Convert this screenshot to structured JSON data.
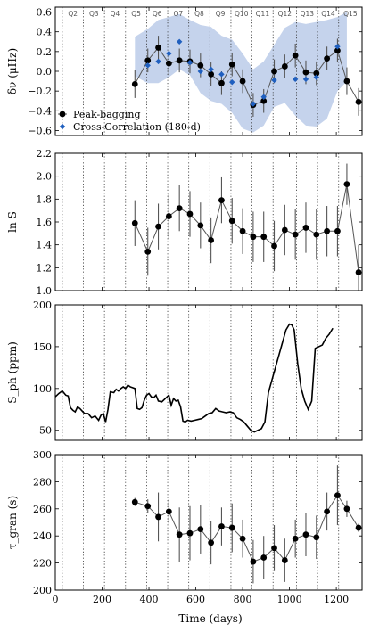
{
  "figure": {
    "xlabel": "Time (days)",
    "x_ticks": [
      0,
      200,
      400,
      600,
      800,
      1000,
      1200
    ],
    "xlim": [
      0,
      1310
    ],
    "quarter_boundaries": [
      30,
      120,
      210,
      300,
      390,
      480,
      570,
      660,
      750,
      840,
      930,
      1030,
      1120,
      1210
    ],
    "quarter_labels": [
      {
        "label": "Q2",
        "x": 75
      },
      {
        "label": "Q3",
        "x": 165
      },
      {
        "label": "Q4",
        "x": 255
      },
      {
        "label": "Q5",
        "x": 345
      },
      {
        "label": "Q6",
        "x": 435
      },
      {
        "label": "Q7",
        "x": 525
      },
      {
        "label": "Q8",
        "x": 615
      },
      {
        "label": "Q9",
        "x": 705
      },
      {
        "label": "Q10",
        "x": 795
      },
      {
        "label": "Q11",
        "x": 885
      },
      {
        "label": "Q12",
        "x": 980
      },
      {
        "label": "Q13",
        "x": 1075
      },
      {
        "label": "Q14",
        "x": 1165
      },
      {
        "label": "Q15",
        "x": 1260
      }
    ],
    "colors": {
      "markers": "#000000",
      "cross_correlation": "#1f5fbf",
      "band": "#c5d3ec",
      "quarter_lines": "#333333"
    }
  },
  "chart_data": [
    {
      "type": "scatter",
      "ylabel": "δν (μHz)",
      "ylim": [
        -0.65,
        0.65
      ],
      "y_ticks": [
        -0.6,
        -0.4,
        -0.2,
        0.0,
        0.2,
        0.4,
        0.6
      ],
      "y_tick_labels": [
        "−0.6",
        "−0.4",
        "−0.2",
        "0.0",
        "0.2",
        "0.4",
        "0.6"
      ],
      "legend": {
        "position": "bottom-left",
        "entries": [
          "Peak-bagging",
          "Cross-Correlation (180-d)"
        ]
      },
      "series": [
        {
          "name": "Peak-bagging",
          "x": [
            340,
            395,
            440,
            485,
            530,
            575,
            620,
            665,
            710,
            755,
            800,
            845,
            890,
            935,
            980,
            1025,
            1070,
            1115,
            1160,
            1205,
            1245,
            1295
          ],
          "y": [
            -0.13,
            0.11,
            0.24,
            0.08,
            0.11,
            0.1,
            0.06,
            -0.03,
            -0.12,
            0.07,
            -0.1,
            -0.34,
            -0.3,
            0.0,
            0.05,
            0.16,
            -0.01,
            -0.02,
            0.13,
            0.21,
            -0.1,
            -0.31
          ],
          "err": [
            0.14,
            0.12,
            0.12,
            0.12,
            0.12,
            0.12,
            0.12,
            0.12,
            0.12,
            0.12,
            0.12,
            0.12,
            0.12,
            0.12,
            0.12,
            0.12,
            0.12,
            0.12,
            0.12,
            0.12,
            0.14,
            0.14
          ]
        },
        {
          "name": "Cross-Correlation (180-d)",
          "x": [
            395,
            440,
            485,
            530,
            575,
            620,
            665,
            710,
            755,
            845,
            890,
            935,
            1025,
            1070,
            1115,
            1205
          ],
          "y": [
            0.06,
            0.1,
            0.18,
            0.3,
            0.09,
            0.0,
            0.02,
            -0.03,
            -0.11,
            -0.33,
            -0.26,
            -0.09,
            -0.08,
            -0.08,
            -0.06,
            0.25
          ]
        }
      ],
      "band": {
        "x": [
          340,
          395,
          440,
          485,
          530,
          575,
          620,
          665,
          710,
          755,
          800,
          845,
          890,
          935,
          980,
          1025,
          1070,
          1115,
          1160,
          1205,
          1245
        ],
        "upper": [
          0.35,
          0.43,
          0.52,
          0.55,
          0.58,
          0.52,
          0.47,
          0.45,
          0.36,
          0.32,
          0.18,
          0.02,
          0.1,
          0.27,
          0.44,
          0.5,
          0.48,
          0.5,
          0.52,
          0.55,
          0.6
        ],
        "lower": [
          -0.05,
          -0.12,
          -0.12,
          -0.06,
          0.02,
          -0.04,
          -0.22,
          -0.3,
          -0.33,
          -0.42,
          -0.58,
          -0.62,
          -0.55,
          -0.36,
          -0.32,
          -0.45,
          -0.55,
          -0.56,
          -0.48,
          -0.2,
          -0.1
        ]
      }
    },
    {
      "type": "line",
      "ylabel": "ln S",
      "ylim": [
        1.0,
        2.2
      ],
      "y_ticks": [
        1.0,
        1.2,
        1.4,
        1.6,
        1.8,
        2.0,
        2.2
      ],
      "y_tick_labels": [
        "1.0",
        "1.2",
        "1.4",
        "1.6",
        "1.8",
        "2.0",
        "2.2"
      ],
      "series": [
        {
          "x": [
            340,
            395,
            440,
            485,
            530,
            575,
            620,
            665,
            710,
            755,
            800,
            845,
            890,
            935,
            980,
            1025,
            1070,
            1115,
            1160,
            1205,
            1245,
            1295
          ],
          "y": [
            1.59,
            1.34,
            1.56,
            1.65,
            1.72,
            1.67,
            1.57,
            1.44,
            1.79,
            1.61,
            1.52,
            1.47,
            1.47,
            1.39,
            1.53,
            1.49,
            1.55,
            1.49,
            1.52,
            1.52,
            1.93,
            1.16
          ],
          "err": [
            0.2,
            0.21,
            0.2,
            0.2,
            0.2,
            0.2,
            0.2,
            0.2,
            0.2,
            0.2,
            0.2,
            0.22,
            0.22,
            0.22,
            0.22,
            0.22,
            0.22,
            0.22,
            0.22,
            0.22,
            0.18,
            0.24
          ]
        }
      ]
    },
    {
      "type": "line",
      "ylabel": "S_ph (ppm)",
      "ylim": [
        38,
        200
      ],
      "y_ticks": [
        50,
        100,
        150,
        200
      ],
      "y_tick_labels": [
        "50",
        "100",
        "150",
        "200"
      ],
      "series": [
        {
          "x": [
            0,
            15,
            30,
            45,
            55,
            65,
            75,
            85,
            95,
            105,
            115,
            125,
            140,
            155,
            170,
            185,
            195,
            205,
            215,
            225,
            235,
            250,
            260,
            270,
            280,
            290,
            300,
            310,
            320,
            330,
            340,
            350,
            360,
            370,
            380,
            390,
            400,
            410,
            420,
            430,
            440,
            455,
            470,
            485,
            495,
            505,
            515,
            525,
            535,
            545,
            555,
            565,
            580,
            595,
            610,
            625,
            640,
            655,
            670,
            685,
            700,
            715,
            730,
            745,
            760,
            775,
            790,
            805,
            820,
            835,
            850,
            865,
            880,
            895,
            910,
            925,
            940,
            955,
            970,
            985,
            1000,
            1010,
            1020,
            1035,
            1050,
            1065,
            1080,
            1095,
            1110,
            1125,
            1140,
            1155,
            1170,
            1185
          ],
          "y": [
            90,
            94,
            97,
            92,
            91,
            77,
            74,
            72,
            78,
            76,
            73,
            70,
            70,
            65,
            67,
            62,
            68,
            70,
            60,
            75,
            96,
            95,
            99,
            97,
            100,
            102,
            100,
            104,
            102,
            101,
            100,
            76,
            75,
            77,
            86,
            92,
            94,
            90,
            89,
            92,
            85,
            84,
            88,
            92,
            80,
            88,
            85,
            86,
            78,
            61,
            60,
            62,
            61,
            62,
            63,
            64,
            67,
            70,
            71,
            76,
            73,
            72,
            71,
            72,
            71,
            65,
            63,
            60,
            55,
            50,
            48,
            50,
            52,
            60,
            95,
            110,
            125,
            140,
            155,
            170,
            177,
            176,
            170,
            130,
            100,
            85,
            75,
            85,
            148,
            150,
            152,
            160,
            165,
            172
          ]
        }
      ]
    },
    {
      "type": "line",
      "ylabel": "τ_gran (s)",
      "ylim": [
        200,
        300
      ],
      "y_ticks": [
        200,
        220,
        240,
        260,
        280,
        300
      ],
      "y_tick_labels": [
        "200",
        "220",
        "240",
        "260",
        "280",
        "300"
      ],
      "series": [
        {
          "x": [
            340,
            395,
            440,
            485,
            530,
            575,
            620,
            665,
            710,
            755,
            800,
            845,
            890,
            935,
            980,
            1025,
            1070,
            1115,
            1160,
            1205,
            1245,
            1295
          ],
          "y": [
            265,
            262,
            254,
            258,
            241,
            242,
            245,
            235,
            247,
            246,
            238,
            221,
            224,
            231,
            222,
            238,
            241,
            239,
            258,
            270,
            260,
            246
          ],
          "err": [
            3,
            5,
            18,
            9,
            20,
            20,
            18,
            16,
            14,
            18,
            14,
            16,
            16,
            17,
            16,
            14,
            16,
            16,
            14,
            22,
            6,
            3
          ]
        }
      ]
    }
  ]
}
